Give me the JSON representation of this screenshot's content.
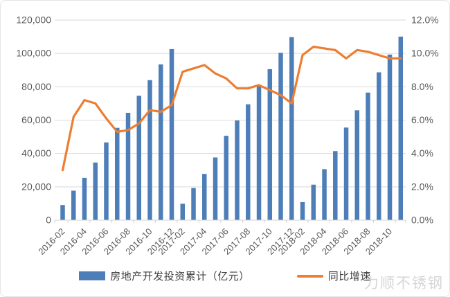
{
  "watermark": {
    "text": "力顺不锈钢"
  },
  "chart_data": {
    "type": "combo",
    "title": "",
    "grid": "horizontal",
    "legend_position": "bottom",
    "categories": [
      "2016-02",
      "2016-03",
      "2016-04",
      "2016-05",
      "2016-06",
      "2016-07",
      "2016-08",
      "2016-09",
      "2016-10",
      "2016-11",
      "2016-12",
      "2017-02",
      "2017-03",
      "2017-04",
      "2017-05",
      "2017-06",
      "2017-07",
      "2017-08",
      "2017-09",
      "2017-10",
      "2017-11",
      "2017-12",
      "2018-02",
      "2018-03",
      "2018-04",
      "2018-05",
      "2018-06",
      "2018-07",
      "2018-08",
      "2018-09",
      "2018-10",
      "2018-11"
    ],
    "series": [
      {
        "name": "房地产开发投资累计（亿元）",
        "type": "bar",
        "axis": "left",
        "color": "#4E7EB8",
        "values": [
          9052,
          17677,
          25376,
          34564,
          46631,
          55361,
          64387,
          74598,
          83975,
          93387,
          102581,
          9854,
          19292,
          27732,
          37595,
          50610,
          59761,
          69494,
          80644,
          90544,
          100387,
          109799,
          10831,
          21291,
          30592,
          41420,
          55531,
          65886,
          76519,
          88665,
          99325,
          110083
        ]
      },
      {
        "name": "同比增速",
        "type": "line",
        "axis": "right",
        "color": "#ED7D31",
        "unit": "%",
        "values": [
          3.0,
          6.2,
          7.2,
          7.0,
          6.1,
          5.3,
          5.4,
          5.8,
          6.6,
          6.5,
          6.9,
          8.9,
          9.1,
          9.3,
          8.8,
          8.5,
          7.9,
          7.9,
          8.1,
          7.8,
          7.5,
          7.0,
          9.9,
          10.4,
          10.3,
          10.2,
          9.7,
          10.2,
          10.1,
          9.9,
          9.7,
          9.7
        ]
      }
    ],
    "left_axis": {
      "min": 0,
      "max": 120000,
      "step": 20000,
      "tick_labels": [
        "0",
        "20,000",
        "40,000",
        "60,000",
        "80,000",
        "100,000",
        "120,000"
      ]
    },
    "right_axis": {
      "min": 0,
      "max": 12,
      "step": 2,
      "unit": "%",
      "tick_labels": [
        "0.0%",
        "2.0%",
        "4.0%",
        "6.0%",
        "8.0%",
        "10.0%",
        "12.0%"
      ]
    },
    "x_axis": {
      "shown_tick_labels": [
        "2016-02",
        "2016-04",
        "2016-06",
        "2016-08",
        "2016-10",
        "2016-12",
        "2017-02",
        "2017-04",
        "2017-06",
        "2017-08",
        "2017-10",
        "2017-12",
        "2018-02",
        "2018-04",
        "2018-06",
        "2018-08",
        "2018-10"
      ]
    },
    "style": {
      "grid_color": "#D9D9D9",
      "axis_line_color": "#D3D3D3",
      "axis_text_color": "#595959",
      "legend_text_color": "#404040",
      "watermark_color": "#D6D6D6"
    }
  }
}
